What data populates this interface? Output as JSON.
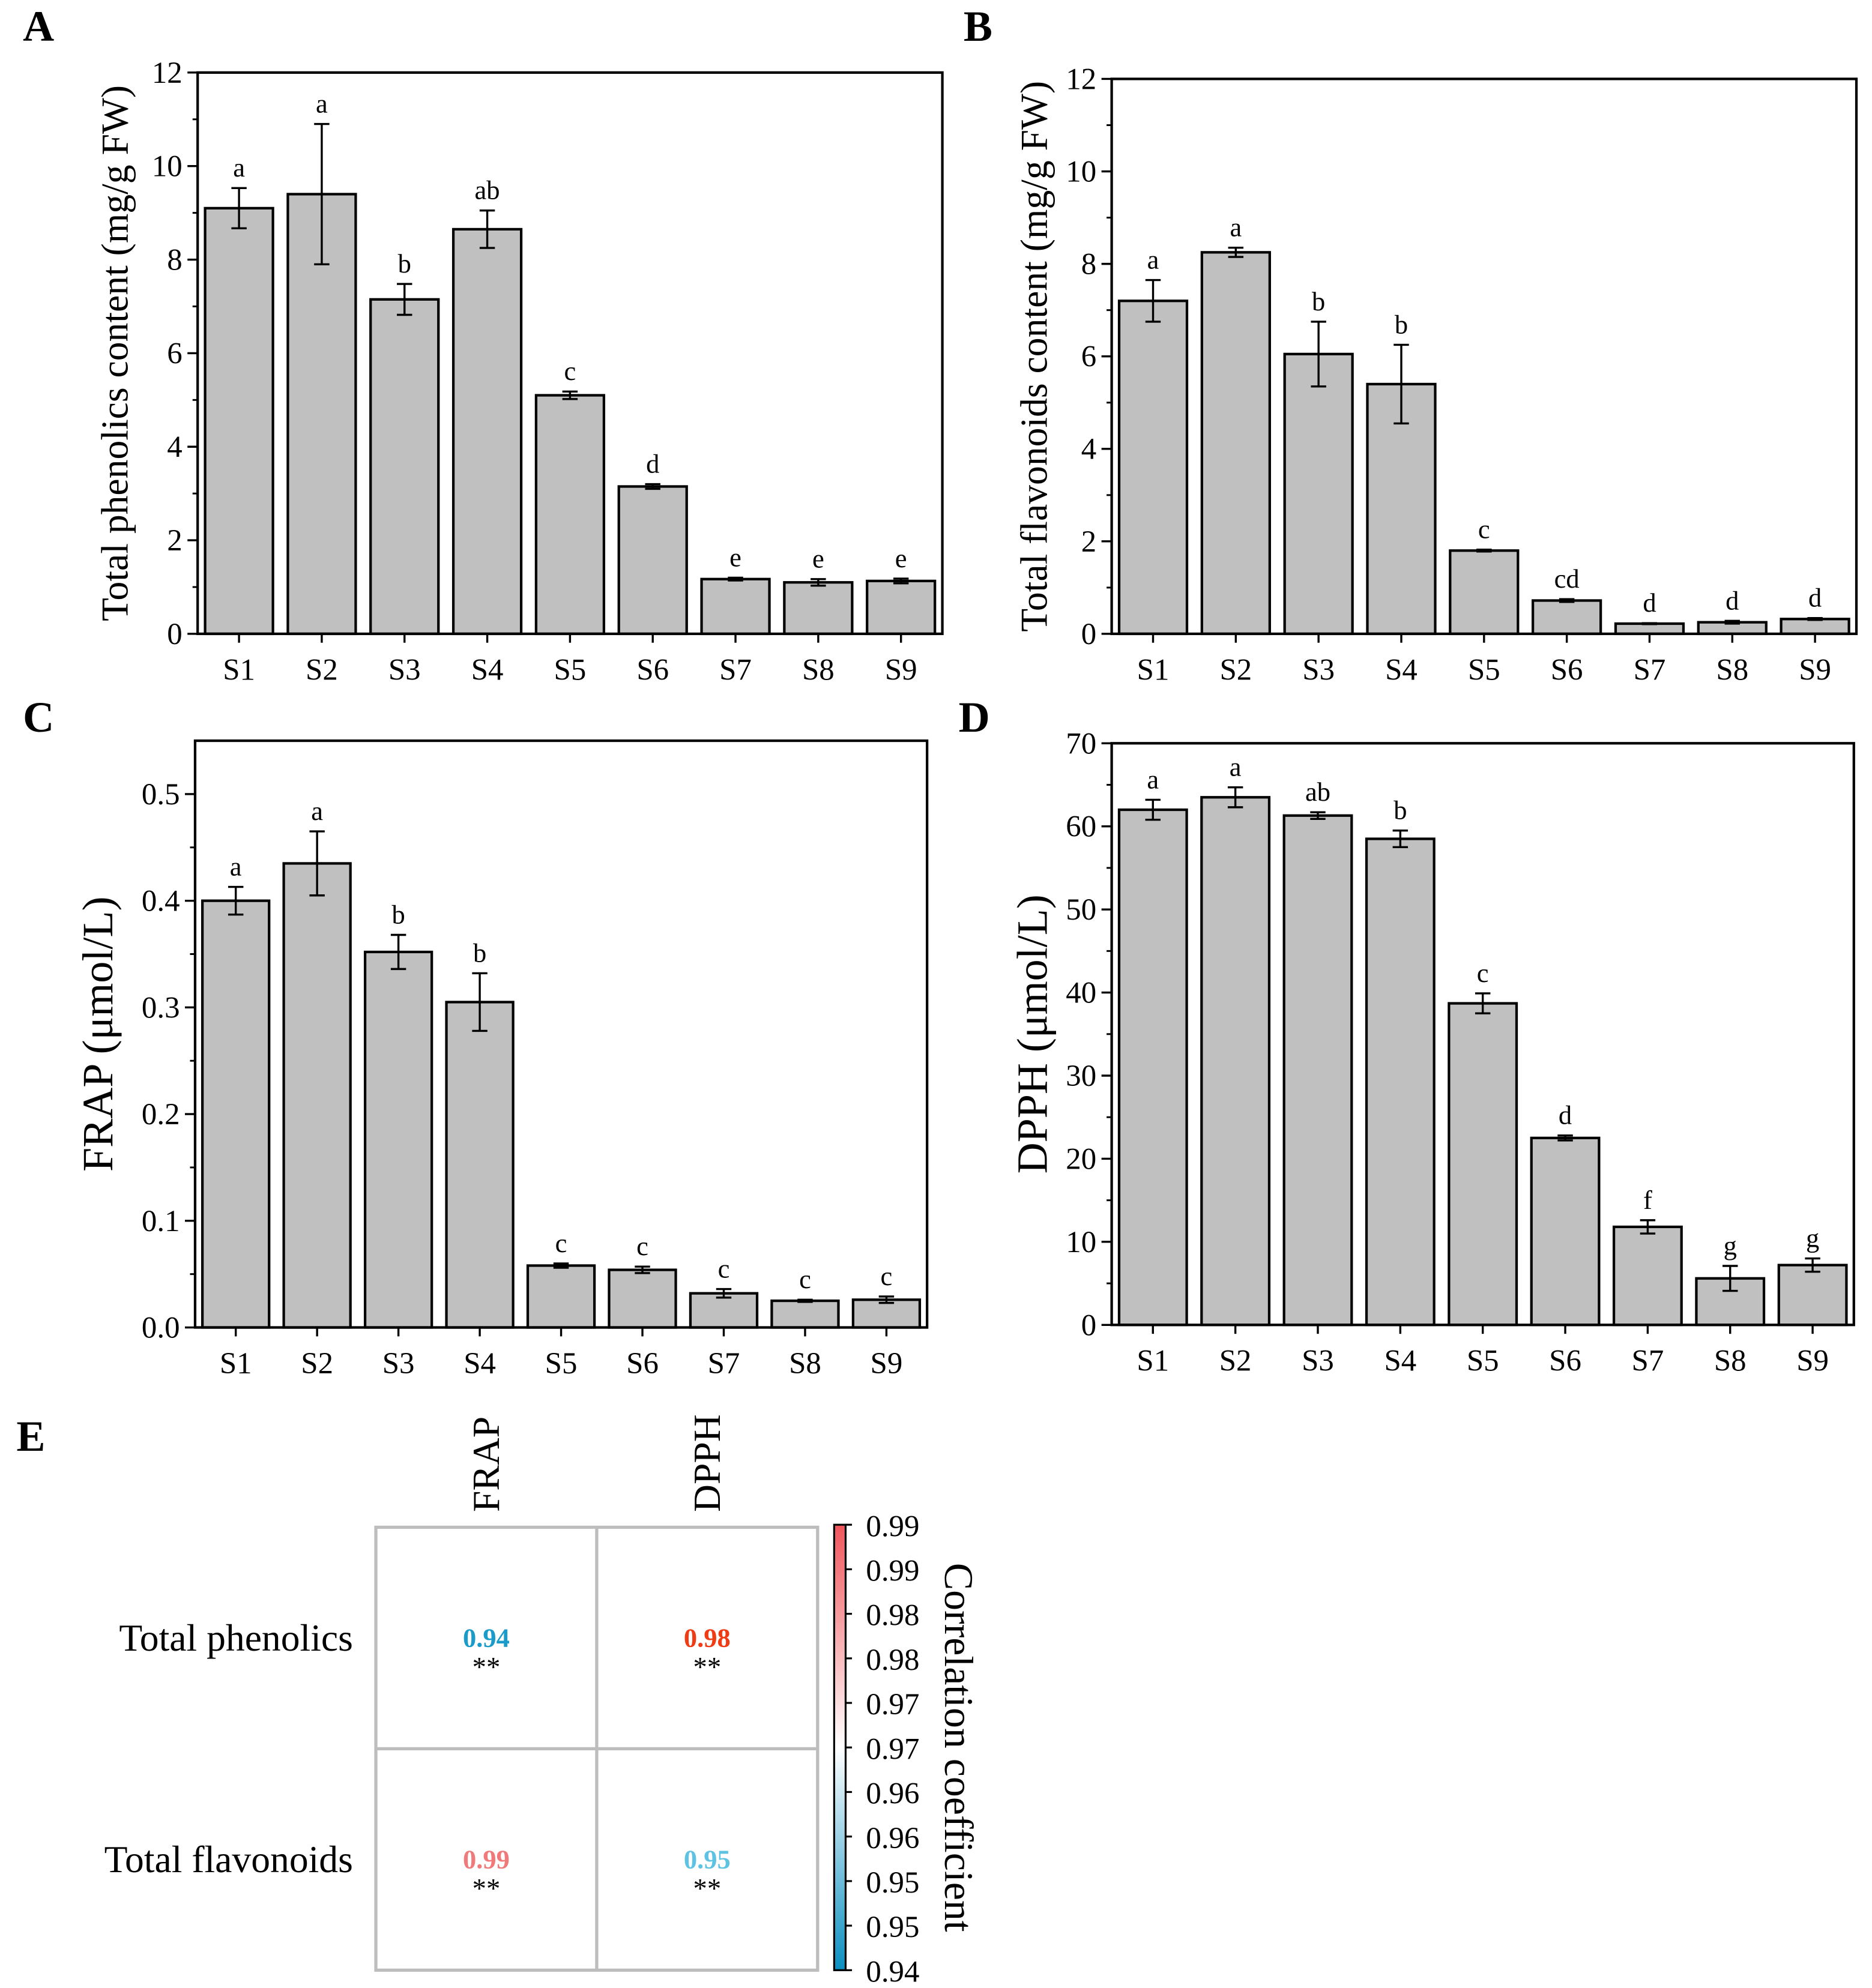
{
  "chart_data": [
    {
      "panel": "A",
      "type": "bar",
      "categories": [
        "S1",
        "S2",
        "S3",
        "S4",
        "S5",
        "S6",
        "S7",
        "S8",
        "S9"
      ],
      "values": [
        9.1,
        9.4,
        7.15,
        8.65,
        5.1,
        3.15,
        1.17,
        1.1,
        1.13
      ],
      "errors": [
        0.43,
        1.5,
        0.33,
        0.4,
        0.08,
        0.05,
        0.03,
        0.07,
        0.05
      ],
      "letters": [
        "a",
        "a",
        "b",
        "ab",
        "c",
        "d",
        "e",
        "e",
        "e"
      ],
      "ylabel": "Total phenolics content (mg/g FW)",
      "ylim": [
        0,
        12
      ],
      "yticks": [
        "0",
        "2",
        "4",
        "6",
        "8",
        "10",
        "12"
      ],
      "ytick_values": [
        0,
        2,
        4,
        6,
        8,
        10,
        12
      ]
    },
    {
      "panel": "B",
      "type": "bar",
      "categories": [
        "S1",
        "S2",
        "S3",
        "S4",
        "S5",
        "S6",
        "S7",
        "S8",
        "S9"
      ],
      "values": [
        7.2,
        8.25,
        6.05,
        5.4,
        1.8,
        0.72,
        0.22,
        0.25,
        0.32
      ],
      "errors": [
        0.45,
        0.1,
        0.7,
        0.85,
        0.02,
        0.03,
        0.01,
        0.03,
        0.02
      ],
      "letters": [
        "a",
        "a",
        "b",
        "b",
        "c",
        "cd",
        "d",
        "d",
        "d"
      ],
      "ylabel": "Total flavonoids content (mg/g FW)",
      "ylim": [
        0,
        12
      ],
      "yticks": [
        "0",
        "2",
        "4",
        "6",
        "8",
        "10",
        "12"
      ],
      "ytick_values": [
        0,
        2,
        4,
        6,
        8,
        10,
        12
      ]
    },
    {
      "panel": "C",
      "type": "bar",
      "categories": [
        "S1",
        "S2",
        "S3",
        "S4",
        "S5",
        "S6",
        "S7",
        "S8",
        "S9"
      ],
      "values": [
        0.4,
        0.435,
        0.352,
        0.305,
        0.058,
        0.054,
        0.032,
        0.025,
        0.026
      ],
      "errors": [
        0.013,
        0.03,
        0.016,
        0.027,
        0.002,
        0.003,
        0.004,
        0.001,
        0.003
      ],
      "letters": [
        "a",
        "a",
        "b",
        "b",
        "c",
        "c",
        "c",
        "c",
        "c"
      ],
      "ylabel": "FRAP (μmol/L)",
      "ylim": [
        0,
        0.55
      ],
      "yticks": [
        "0.0",
        "0.1",
        "0.2",
        "0.3",
        "0.4",
        "0.5"
      ],
      "ytick_values": [
        0,
        0.1,
        0.2,
        0.3,
        0.4,
        0.5
      ]
    },
    {
      "panel": "D",
      "type": "bar",
      "categories": [
        "S1",
        "S2",
        "S3",
        "S4",
        "S5",
        "S6",
        "S7",
        "S8",
        "S9"
      ],
      "values": [
        62,
        63.5,
        61.3,
        58.5,
        38.7,
        22.5,
        11.8,
        5.6,
        7.2
      ],
      "errors": [
        1.2,
        1.2,
        0.4,
        1.0,
        1.2,
        0.3,
        0.8,
        1.5,
        0.8
      ],
      "letters": [
        "a",
        "a",
        "ab",
        "b",
        "c",
        "d",
        "f",
        "g",
        "g"
      ],
      "ylabel": "DPPH (μmol/L)",
      "ylim": [
        0,
        70
      ],
      "yticks": [
        "0",
        "10",
        "20",
        "30",
        "40",
        "50",
        "60",
        "70"
      ],
      "ytick_values": [
        0,
        10,
        20,
        30,
        40,
        50,
        60,
        70
      ]
    },
    {
      "panel": "E",
      "type": "heatmap",
      "columns": [
        "FRAP",
        "DPPH"
      ],
      "rows": [
        "Total phenolics",
        "Total flavonoids"
      ],
      "values": [
        [
          "0.94",
          "0.98"
        ],
        [
          "0.99",
          "0.95"
        ]
      ],
      "significance": [
        [
          "**",
          "**"
        ],
        [
          "**",
          "**"
        ]
      ],
      "value_colors": [
        [
          "#1a9bc9",
          "#f03c14"
        ],
        [
          "#f07a7a",
          "#5ec3e3"
        ]
      ],
      "colorbar_label": "Correlation coefficient",
      "colorbar_ticks": [
        "0.99",
        "0.99",
        "0.98",
        "0.98",
        "0.97",
        "0.97",
        "0.96",
        "0.96",
        "0.95",
        "0.95",
        "0.94"
      ],
      "colorbar_colors": [
        "#f0565c",
        "#ffffff",
        "#0a8fc0"
      ]
    }
  ]
}
